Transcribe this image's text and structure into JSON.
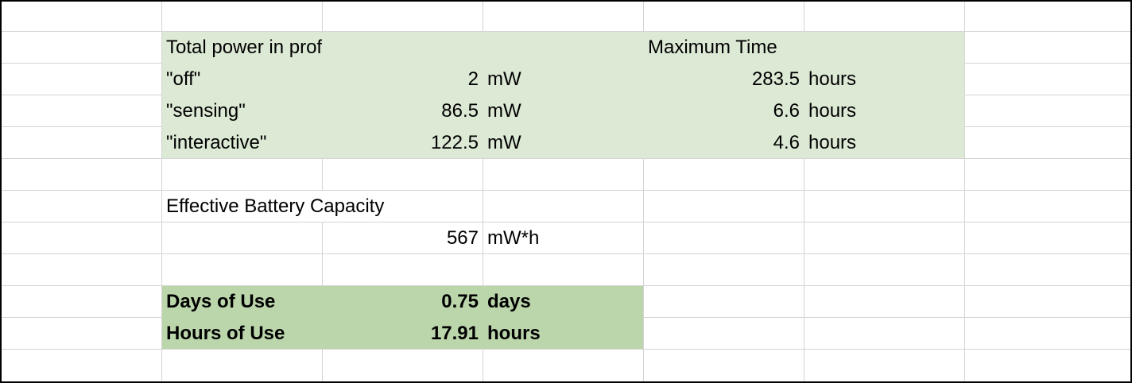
{
  "power_table": {
    "title": "Total power in profile (mw)",
    "max_time_title": "Maximum Time",
    "rows": [
      {
        "label": "\"off\"",
        "power": "2",
        "power_unit": "mW",
        "time": "283.5",
        "time_unit": "hours"
      },
      {
        "label": "\"sensing\"",
        "power": "86.5",
        "power_unit": "mW",
        "time": "6.6",
        "time_unit": "hours"
      },
      {
        "label": "\"interactive\"",
        "power": "122.5",
        "power_unit": "mW",
        "time": "4.6",
        "time_unit": "hours"
      }
    ]
  },
  "battery": {
    "title": "Effective Battery Capacity",
    "value": "567",
    "unit": "mW*h"
  },
  "summary": {
    "days_label": "Days of Use",
    "days_value": "0.75",
    "days_unit": "days",
    "hours_label": "Hours of Use",
    "hours_value": "17.91",
    "hours_unit": "hours"
  },
  "colors": {
    "light_fill": "#dce9d5",
    "dark_fill": "#bcd6ac",
    "gridline": "#d4d4d4"
  }
}
